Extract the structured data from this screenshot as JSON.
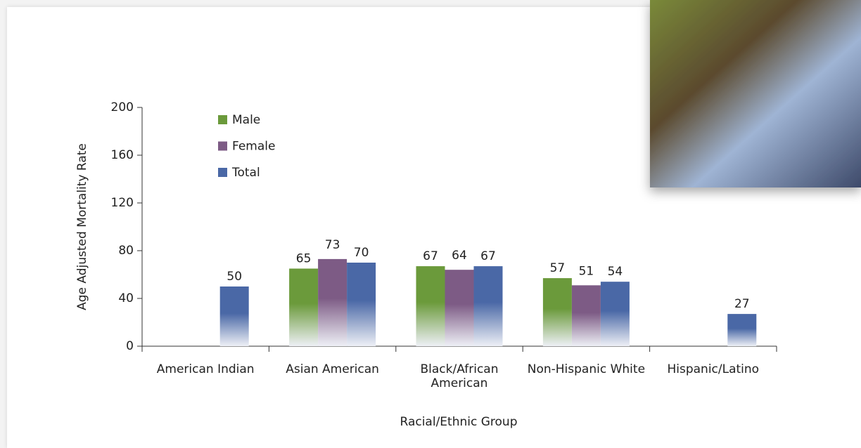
{
  "chart_data": {
    "type": "bar",
    "y_label": "Age Adjusted Mortality Rate",
    "x_label": "Racial/Ethnic Group",
    "categories": [
      "American Indian",
      "Asian American",
      "Black/African American",
      "Non-Hispanic White",
      "Hispanic/Latino"
    ],
    "series": [
      {
        "name": "Male",
        "color": "#6b9a3b",
        "values": [
          null,
          65,
          67,
          57,
          null
        ]
      },
      {
        "name": "Female",
        "color": "#7d5b85",
        "values": [
          null,
          73,
          64,
          51,
          null
        ]
      },
      {
        "name": "Total",
        "color": "#4a68a6",
        "values": [
          50,
          70,
          67,
          54,
          27
        ]
      }
    ],
    "ylim": [
      0,
      200
    ],
    "yticks": [
      0,
      40,
      80,
      120,
      160,
      200
    ]
  }
}
